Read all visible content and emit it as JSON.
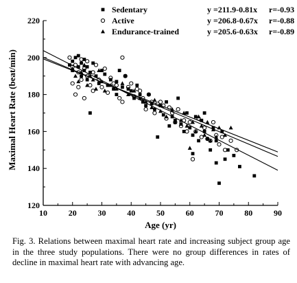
{
  "chart_data": {
    "type": "scatter",
    "xlabel": "Age (yr)",
    "ylabel": "Maximal Heart Rate (beat/min)",
    "xlim": [
      10,
      90
    ],
    "ylim": [
      120,
      220
    ],
    "xticks": [
      10,
      20,
      30,
      40,
      50,
      60,
      70,
      80,
      90
    ],
    "yticks": [
      120,
      140,
      160,
      180,
      200,
      220
    ],
    "grid": false,
    "legend_position": "top-left",
    "series": [
      {
        "name": "Sedentary",
        "marker": "square",
        "equation": "y =211.9-0.81x",
        "r": "r=-0.93",
        "regression": {
          "intercept": 211.9,
          "slope": -0.81
        },
        "points": [
          [
            19,
            196
          ],
          [
            20,
            198
          ],
          [
            20,
            193
          ],
          [
            21,
            200
          ],
          [
            22,
            201
          ],
          [
            22,
            195
          ],
          [
            23,
            197
          ],
          [
            23,
            190
          ],
          [
            24,
            199
          ],
          [
            24,
            193
          ],
          [
            25,
            195
          ],
          [
            25,
            188
          ],
          [
            26,
            170
          ],
          [
            26,
            192
          ],
          [
            27,
            197
          ],
          [
            28,
            190
          ],
          [
            29,
            186
          ],
          [
            30,
            193
          ],
          [
            31,
            191
          ],
          [
            32,
            185
          ],
          [
            33,
            188
          ],
          [
            34,
            183
          ],
          [
            35,
            187
          ],
          [
            35,
            180
          ],
          [
            36,
            193
          ],
          [
            37,
            184
          ],
          [
            38,
            190
          ],
          [
            39,
            183
          ],
          [
            40,
            182
          ],
          [
            41,
            178
          ],
          [
            42,
            185
          ],
          [
            43,
            180
          ],
          [
            44,
            176
          ],
          [
            45,
            174
          ],
          [
            46,
            180
          ],
          [
            47,
            175
          ],
          [
            48,
            172
          ],
          [
            49,
            157
          ],
          [
            50,
            174
          ],
          [
            51,
            169
          ],
          [
            52,
            176
          ],
          [
            53,
            163
          ],
          [
            54,
            168
          ],
          [
            55,
            166
          ],
          [
            56,
            178
          ],
          [
            57,
            164
          ],
          [
            58,
            160
          ],
          [
            59,
            170
          ],
          [
            60,
            162
          ],
          [
            61,
            148
          ],
          [
            61,
            158
          ],
          [
            62,
            168
          ],
          [
            63,
            155
          ],
          [
            64,
            166
          ],
          [
            65,
            160
          ],
          [
            65,
            170
          ],
          [
            66,
            156
          ],
          [
            67,
            150
          ],
          [
            68,
            162
          ],
          [
            69,
            155
          ],
          [
            69,
            143
          ],
          [
            70,
            132
          ],
          [
            71,
            160
          ],
          [
            72,
            145
          ],
          [
            73,
            150
          ],
          [
            75,
            147
          ],
          [
            77,
            141
          ],
          [
            82,
            136
          ]
        ]
      },
      {
        "name": "Active",
        "marker": "open-circle",
        "equation": "y =206.8-0.67x",
        "r": "r=-0.88",
        "regression": {
          "intercept": 206.8,
          "slope": -0.67
        },
        "points": [
          [
            19,
            200
          ],
          [
            20,
            195
          ],
          [
            20,
            186
          ],
          [
            21,
            180
          ],
          [
            21,
            196
          ],
          [
            22,
            192
          ],
          [
            22,
            184
          ],
          [
            23,
            199
          ],
          [
            23,
            188
          ],
          [
            24,
            194
          ],
          [
            24,
            178
          ],
          [
            25,
            190
          ],
          [
            25,
            198
          ],
          [
            26,
            185
          ],
          [
            27,
            192
          ],
          [
            27,
            182
          ],
          [
            28,
            196
          ],
          [
            29,
            188
          ],
          [
            30,
            184
          ],
          [
            31,
            194
          ],
          [
            32,
            181
          ],
          [
            33,
            189
          ],
          [
            34,
            186
          ],
          [
            35,
            185
          ],
          [
            36,
            178
          ],
          [
            37,
            200
          ],
          [
            37,
            176
          ],
          [
            38,
            190
          ],
          [
            39,
            184
          ],
          [
            40,
            186
          ],
          [
            41,
            179
          ],
          [
            42,
            183
          ],
          [
            43,
            182
          ],
          [
            44,
            178
          ],
          [
            45,
            172
          ],
          [
            46,
            180
          ],
          [
            47,
            176
          ],
          [
            48,
            170
          ],
          [
            49,
            175
          ],
          [
            50,
            176
          ],
          [
            51,
            174
          ],
          [
            52,
            167
          ],
          [
            53,
            173
          ],
          [
            54,
            170
          ],
          [
            55,
            165
          ],
          [
            56,
            172
          ],
          [
            57,
            163
          ],
          [
            58,
            166
          ],
          [
            59,
            160
          ],
          [
            60,
            165
          ],
          [
            61,
            145
          ],
          [
            62,
            160
          ],
          [
            63,
            167
          ],
          [
            64,
            157
          ],
          [
            65,
            162
          ],
          [
            66,
            156
          ],
          [
            67,
            155
          ],
          [
            68,
            165
          ],
          [
            69,
            158
          ],
          [
            70,
            153
          ],
          [
            71,
            157
          ],
          [
            72,
            150
          ],
          [
            74,
            155
          ],
          [
            76,
            150
          ]
        ]
      },
      {
        "name": "Endurance-trained",
        "marker": "filled-triangle",
        "equation": "y =205.6-0.63x",
        "r": "r=-0.89",
        "regression": {
          "intercept": 205.6,
          "slope": -0.63
        },
        "points": [
          [
            20,
            194
          ],
          [
            21,
            190
          ],
          [
            22,
            187
          ],
          [
            23,
            192
          ],
          [
            24,
            196
          ],
          [
            25,
            185
          ],
          [
            26,
            190
          ],
          [
            27,
            188
          ],
          [
            28,
            183
          ],
          [
            29,
            193
          ],
          [
            30,
            187
          ],
          [
            31,
            182
          ],
          [
            33,
            185
          ],
          [
            35,
            183
          ],
          [
            37,
            186
          ],
          [
            39,
            180
          ],
          [
            41,
            182
          ],
          [
            43,
            178
          ],
          [
            45,
            176
          ],
          [
            47,
            173
          ],
          [
            48,
            177
          ],
          [
            50,
            171
          ],
          [
            52,
            168
          ],
          [
            54,
            172
          ],
          [
            55,
            165
          ],
          [
            57,
            166
          ],
          [
            58,
            170
          ],
          [
            59,
            163
          ],
          [
            60,
            151
          ],
          [
            61,
            165
          ],
          [
            62,
            160
          ],
          [
            63,
            168
          ],
          [
            64,
            163
          ],
          [
            65,
            158
          ],
          [
            66,
            165
          ],
          [
            67,
            155
          ],
          [
            68,
            161
          ],
          [
            69,
            157
          ],
          [
            70,
            162
          ],
          [
            72,
            158
          ],
          [
            74,
            162
          ]
        ]
      }
    ]
  },
  "caption": "Fig. 3.  Relations between maximal heart rate and increasing subject group age in the three study populations. There were no group differences in rates of decline in maximal heart rate with advancing age."
}
